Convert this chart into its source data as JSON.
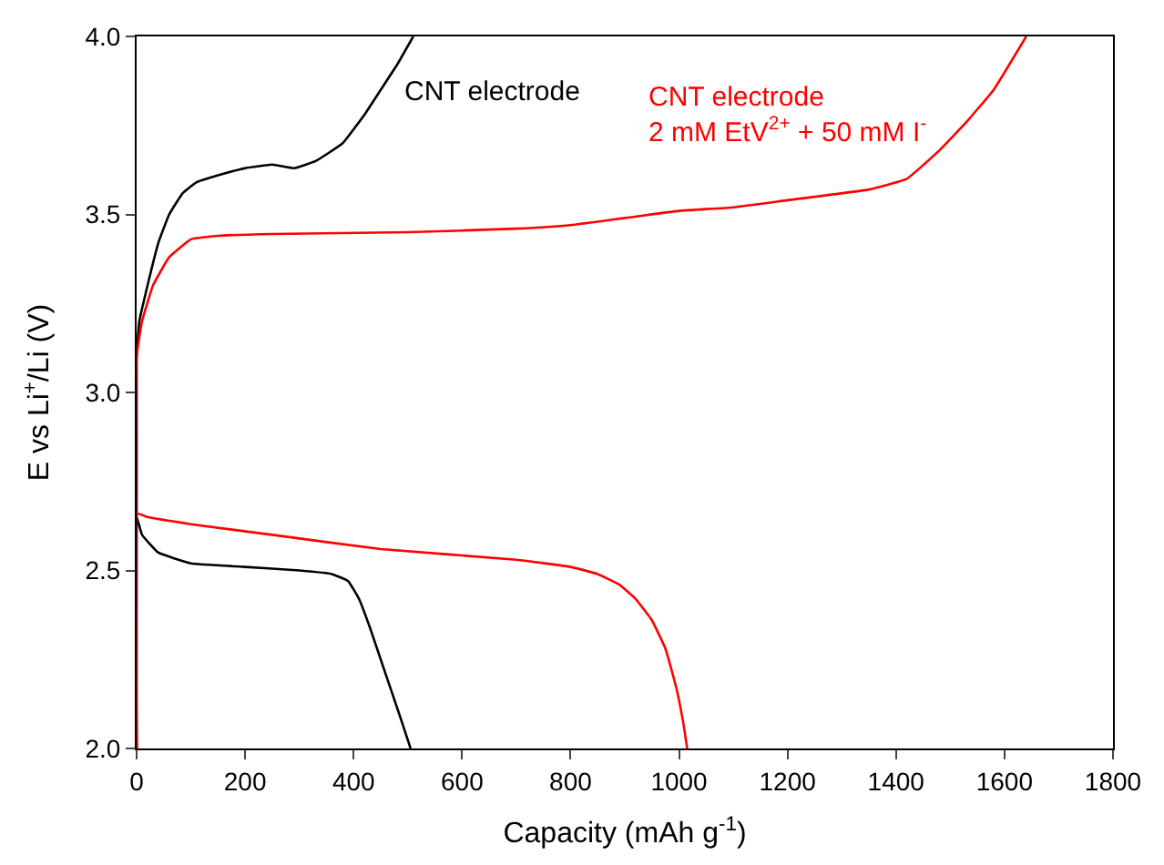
{
  "chart_data": {
    "type": "line",
    "xlabel": "Capacity (mAh g$^{-1}$)",
    "ylabel": "E vs Li$^{+}$/Li (V)",
    "xlim": [
      0,
      1800
    ],
    "xticks": [
      0,
      200,
      400,
      600,
      800,
      1000,
      1200,
      1400,
      1600,
      1800
    ],
    "ylim": [
      2.0,
      4.0
    ],
    "yticks": [
      {
        "value": 2,
        "label": "2.0"
      },
      2.5,
      {
        "value": 3,
        "label": "3.0"
      },
      3.5,
      {
        "value": 4,
        "label": "4.0"
      }
    ],
    "legend": false,
    "marker": "none",
    "line_style": "solid",
    "series": [
      {
        "name": "CNT electrode",
        "color": "#000000",
        "x": [
          0,
          0,
          10,
          40,
          100,
          200,
          300,
          360,
          390,
          410,
          430,
          450,
          470,
          490,
          505,
          null,
          0,
          0,
          5,
          20,
          40,
          60,
          85,
          110,
          150,
          200,
          250,
          290,
          330,
          380,
          420,
          450,
          480,
          510
        ],
        "values": [
          2.0,
          2.65,
          2.6,
          2.55,
          2.52,
          2.51,
          2.5,
          2.49,
          2.47,
          2.42,
          2.34,
          2.25,
          2.16,
          2.07,
          2.0,
          null,
          2.0,
          3.1,
          3.2,
          3.3,
          3.42,
          3.5,
          3.56,
          3.59,
          3.61,
          3.63,
          3.64,
          3.63,
          3.65,
          3.7,
          3.78,
          3.85,
          3.92,
          4.0
        ]
      },
      {
        "name": "CNT electrode\n2 mM EtV$^{2+}$ + 50 mM I$^{-}$",
        "color": "#ff0000",
        "x": [
          0,
          0,
          20,
          100,
          250,
          450,
          700,
          800,
          850,
          890,
          920,
          950,
          975,
          995,
          1008,
          1015,
          null,
          0,
          0,
          10,
          30,
          60,
          100,
          150,
          250,
          500,
          700,
          800,
          900,
          1000,
          1100,
          1200,
          1350,
          1420,
          1480,
          1530,
          1580,
          1640
        ],
        "values": [
          2.0,
          2.66,
          2.65,
          2.63,
          2.6,
          2.56,
          2.53,
          2.51,
          2.49,
          2.46,
          2.42,
          2.36,
          2.28,
          2.17,
          2.07,
          2.0,
          null,
          2.0,
          3.1,
          3.2,
          3.3,
          3.38,
          3.43,
          3.44,
          3.445,
          3.45,
          3.46,
          3.47,
          3.49,
          3.51,
          3.52,
          3.54,
          3.57,
          3.6,
          3.68,
          3.76,
          3.85,
          4.0
        ]
      }
    ]
  }
}
